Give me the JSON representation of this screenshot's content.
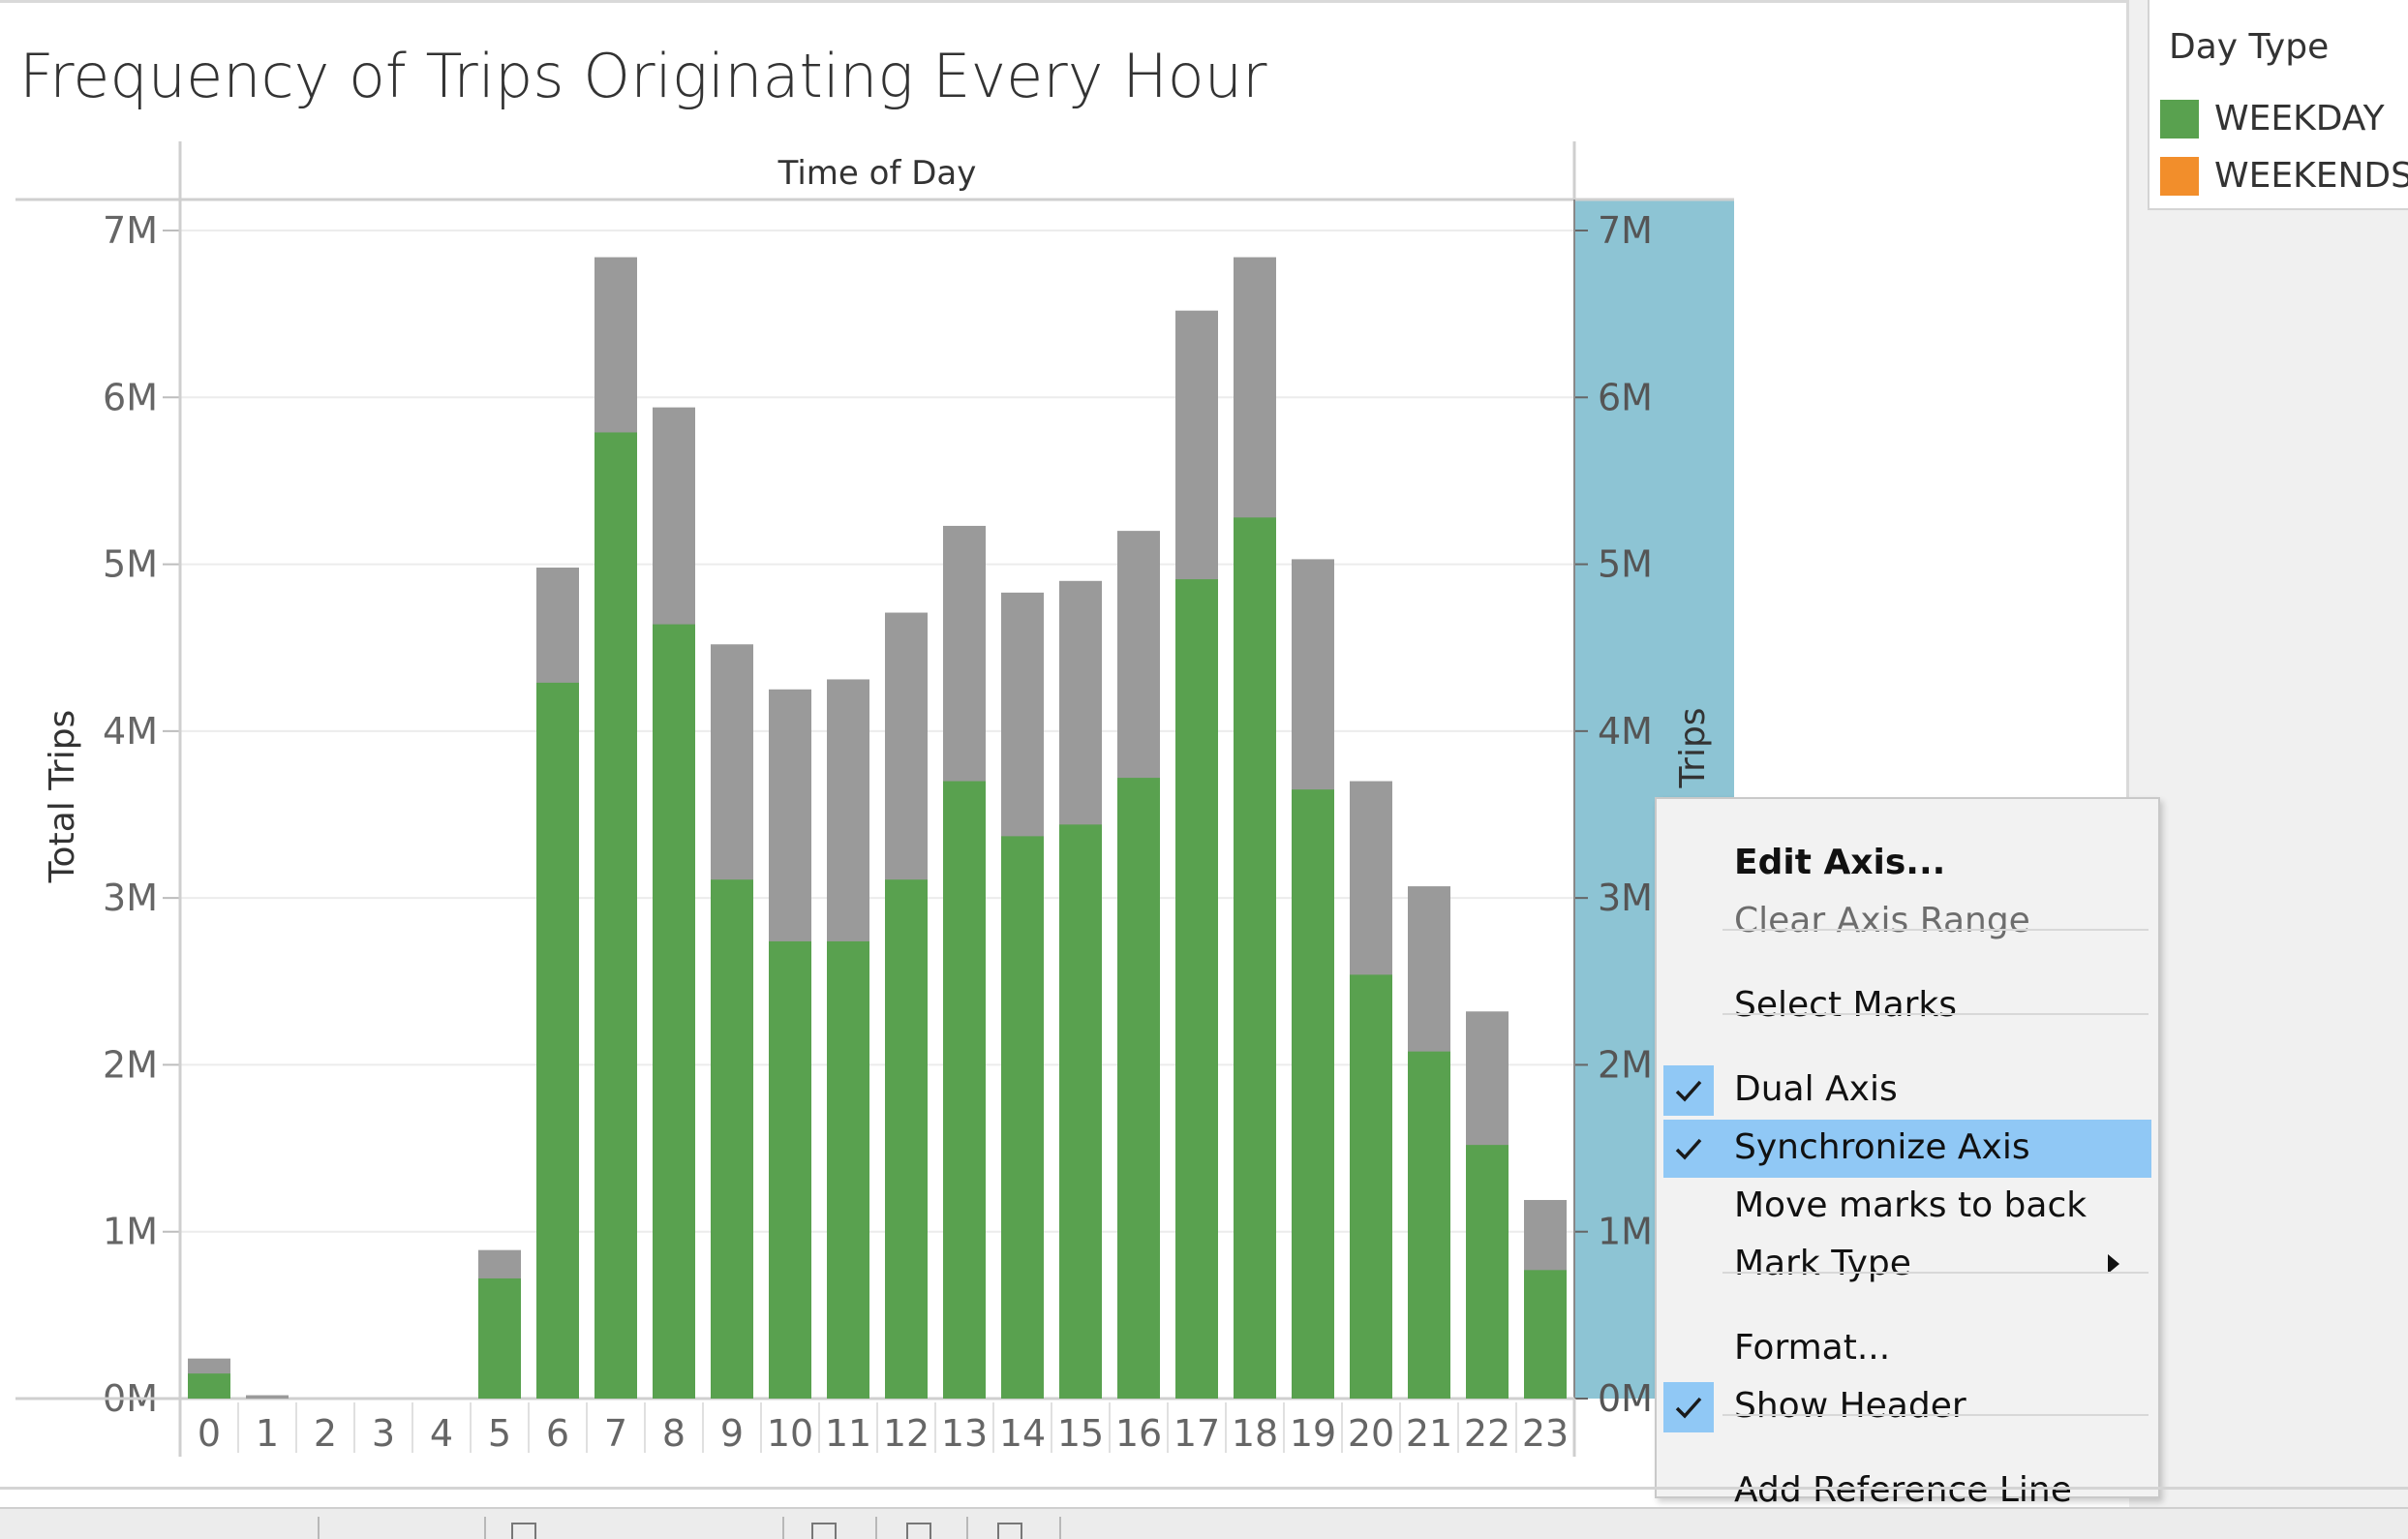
{
  "chart_title": "Frequency of Trips Originating Every Hour",
  "legend": {
    "title": "Day Type",
    "items": [
      {
        "label": "WEEKDAY",
        "color": "#59a14f"
      },
      {
        "label": "WEEKENDS/",
        "color": "#f28e2b"
      }
    ]
  },
  "context_menu": {
    "items": [
      {
        "label": "Edit Axis...",
        "style": "bold"
      },
      {
        "label": "Clear Axis Range",
        "style": "disabled"
      },
      {
        "label": "Select Marks"
      },
      {
        "label": "Dual Axis",
        "checked": true
      },
      {
        "label": "Synchronize Axis",
        "checked": true,
        "highlighted": true
      },
      {
        "label": "Move marks to back"
      },
      {
        "label": "Mark Type",
        "submenu": true
      },
      {
        "label": "Format..."
      },
      {
        "label": "Show Header",
        "checked": true
      },
      {
        "label": "Add Reference Line"
      }
    ]
  },
  "chart_data": {
    "type": "bar",
    "title": "Frequency of Trips Originating Every Hour",
    "column_header": "Time of Day",
    "ylabel": "Total Trips",
    "ylabel_right_partial": "Trips",
    "ylim": [
      0,
      7000000
    ],
    "y_ticks": [
      "0M",
      "1M",
      "2M",
      "3M",
      "4M",
      "5M",
      "6M",
      "7M"
    ],
    "categories": [
      "0",
      "1",
      "2",
      "3",
      "4",
      "5",
      "6",
      "7",
      "8",
      "9",
      "10",
      "11",
      "12",
      "13",
      "14",
      "15",
      "16",
      "17",
      "18",
      "19",
      "20",
      "21",
      "22",
      "23"
    ],
    "series": [
      {
        "name": "WEEKDAY",
        "color": "#59a14f",
        "values": [
          150000,
          0,
          0,
          0,
          0,
          720000,
          4290000,
          5790000,
          4640000,
          3110000,
          2740000,
          2740000,
          3110000,
          3700000,
          3370000,
          3440000,
          3720000,
          4910000,
          5280000,
          3650000,
          2540000,
          2080000,
          1520000,
          770000
        ]
      },
      {
        "name": "",
        "color": "#9a9a9a",
        "values": [
          240000,
          20000,
          0,
          0,
          0,
          890000,
          4980000,
          6840000,
          5940000,
          4520000,
          4250000,
          4310000,
          4710000,
          5230000,
          4830000,
          4900000,
          5200000,
          6520000,
          6840000,
          5030000,
          3700000,
          3070000,
          2320000,
          1190000
        ]
      }
    ],
    "legend_position": "right",
    "grid": true,
    "right_axis_highlighted": true
  }
}
